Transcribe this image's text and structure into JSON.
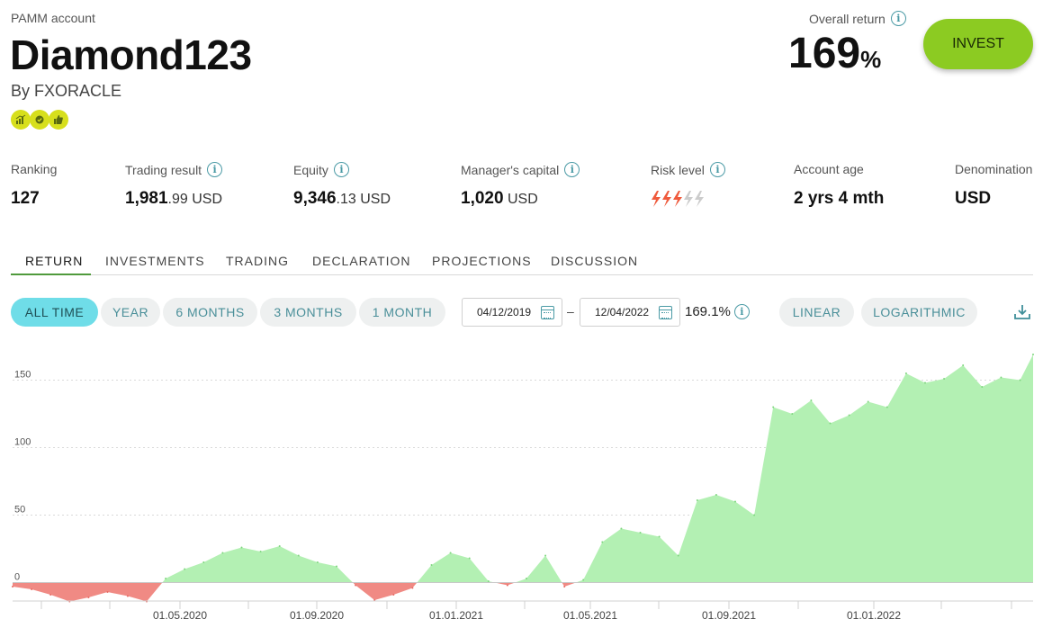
{
  "header": {
    "account_type": "PAMM account",
    "account_name": "Diamond123",
    "manager": "By FXORACLE",
    "badges": [
      "chart-badge-icon",
      "check-badge-icon",
      "thumbs-up-badge-icon"
    ],
    "overall_return_label": "Overall return",
    "overall_return_value": "169",
    "overall_return_unit": "%",
    "invest_label": "INVEST"
  },
  "stats": {
    "ranking_label": "Ranking",
    "ranking_value": "127",
    "trading_result_label": "Trading result",
    "trading_result_int": "1,981",
    "trading_result_dec": ".99 USD",
    "equity_label": "Equity",
    "equity_int": "9,346",
    "equity_dec": ".13 USD",
    "managers_capital_label": "Manager's capital",
    "managers_capital_int": "1,020",
    "managers_capital_dec": " USD",
    "risk_level_label": "Risk level",
    "risk_level": 3,
    "risk_level_max": 5,
    "account_age_label": "Account age",
    "account_age_value": "2 yrs 4 mth",
    "denomination_label": "Denomination",
    "denomination_value": "USD"
  },
  "tabs": [
    "RETURN",
    "INVESTMENTS",
    "TRADING",
    "DECLARATION",
    "PROJECTIONS",
    "DISCUSSION"
  ],
  "active_tab": "RETURN",
  "filters": {
    "periods": [
      "ALL TIME",
      "YEAR",
      "6 MONTHS",
      "3 MONTHS",
      "1 MONTH"
    ],
    "active_period": "ALL TIME",
    "date_from": "04/12/2019",
    "date_separator": "–",
    "date_to": "12/04/2022",
    "range_return": "169.1%",
    "scales": [
      "LINEAR",
      "LOGARITHMIC"
    ]
  },
  "colors": {
    "accent": "#8ccb22",
    "active_pill": "#6fdde8",
    "positive_fill": "#b3f0b3",
    "negative_fill": "#f08a84",
    "risk_active": "#ef5a3c",
    "risk_inactive": "#cccccc"
  },
  "chart_data": {
    "type": "area",
    "xlabel": "",
    "ylabel": "",
    "ylim": [
      -25,
      175
    ],
    "yticks": [
      0,
      50,
      100,
      150
    ],
    "xtick_labels": [
      "01.05.2020",
      "01.09.2020",
      "01.01.2021",
      "01.05.2021",
      "01.09.2021",
      "01.01.2022"
    ],
    "grid": true,
    "x_dates": [
      "2019-12-04",
      "2019-12-20",
      "2020-01-05",
      "2020-01-21",
      "2020-02-06",
      "2020-02-22",
      "2020-03-10",
      "2020-03-26",
      "2020-04-11",
      "2020-04-27",
      "2020-05-13",
      "2020-05-29",
      "2020-06-14",
      "2020-06-30",
      "2020-07-16",
      "2020-08-01",
      "2020-08-17",
      "2020-09-02",
      "2020-09-18",
      "2020-10-04",
      "2020-10-20",
      "2020-11-05",
      "2020-11-21",
      "2020-12-07",
      "2020-12-23",
      "2021-01-08",
      "2021-01-24",
      "2021-02-09",
      "2021-02-25",
      "2021-03-13",
      "2021-03-29",
      "2021-04-14",
      "2021-04-30",
      "2021-05-16",
      "2021-06-01",
      "2021-06-17",
      "2021-07-03",
      "2021-07-19",
      "2021-08-04",
      "2021-08-20",
      "2021-09-05",
      "2021-09-21",
      "2021-10-07",
      "2021-10-23",
      "2021-11-08",
      "2021-11-24",
      "2021-12-10",
      "2021-12-26",
      "2022-01-11",
      "2022-01-27",
      "2022-02-12",
      "2022-02-28",
      "2022-03-16",
      "2022-04-01",
      "2022-04-12"
    ],
    "values": [
      -3,
      -5,
      -9,
      -14,
      -11,
      -7,
      -10,
      -14,
      3,
      10,
      15,
      22,
      26,
      23,
      27,
      20,
      15,
      12,
      -2,
      -13,
      -9,
      -4,
      13,
      22,
      18,
      1,
      -2,
      3,
      20,
      -3,
      2,
      30,
      40,
      37,
      34,
      20,
      61,
      65,
      60,
      50,
      130,
      125,
      135,
      118,
      124,
      134,
      130,
      155,
      148,
      151,
      161,
      145,
      152,
      150,
      169
    ]
  }
}
